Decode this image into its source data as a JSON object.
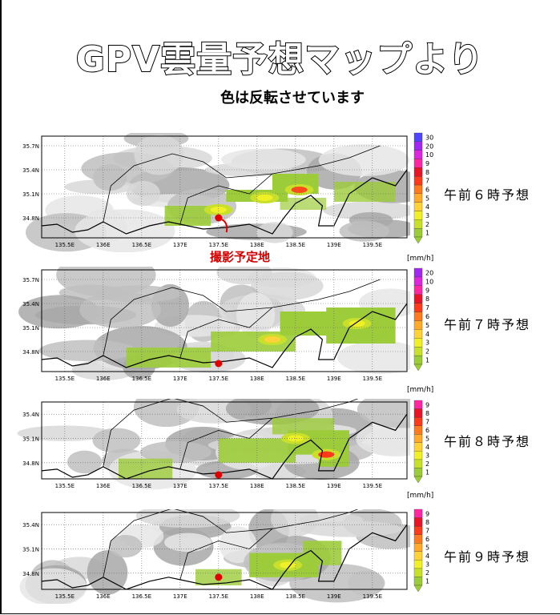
{
  "title": "GPV雲量予想マップより",
  "subtitle": "色は反転させています",
  "location_label": "撮影予定地",
  "unit": "[mm/h]",
  "colors": {
    "accent_red": "#e00000",
    "legend": [
      "#9ccc3a",
      "#c8e02c",
      "#f0f028",
      "#ffd23a",
      "#ffaa2a",
      "#ff7a20",
      "#ff3a1a",
      "#e81428",
      "#ff28a0",
      "#dc28dc",
      "#a028f0",
      "#5046ff",
      "#2828ff"
    ]
  },
  "chart_data": [
    {
      "type": "heatmap",
      "forecast": "午前６時予想",
      "x_ticks": [
        "135.5E",
        "136E",
        "136.5E",
        "137E",
        "137.5E",
        "138E",
        "138.5E",
        "139E",
        "139.5E"
      ],
      "y_ticks": [
        "35.7N",
        "35.4N",
        "35.1N",
        "34.8N"
      ],
      "legend_levels": [
        "1",
        "2",
        "3",
        "4",
        "5",
        "6",
        "7",
        "8",
        "9",
        "10",
        "20",
        "30"
      ],
      "marker": {
        "lon": 137.5,
        "lat": 34.8
      },
      "rain_max_mm_h": 7
    },
    {
      "type": "heatmap",
      "forecast": "午前７時予想",
      "x_ticks": [
        "135.5E",
        "136E",
        "136.5E",
        "137E",
        "137.5E",
        "138E",
        "138.5E",
        "139E",
        "139.5E"
      ],
      "y_ticks": [
        "35.7N",
        "35.4N",
        "35.1N",
        "34.8N"
      ],
      "legend_levels": [
        "1",
        "2",
        "3",
        "4",
        "5",
        "6",
        "7",
        "8",
        "9",
        "10",
        "20"
      ],
      "marker": {
        "lon": 137.5,
        "lat": 34.65
      },
      "rain_max_mm_h": 4
    },
    {
      "type": "heatmap",
      "forecast": "午前８時予想",
      "x_ticks": [
        "135.5E",
        "136E",
        "136.5E",
        "137E",
        "137.5E",
        "138E",
        "138.5E",
        "139E",
        "139.5E"
      ],
      "y_ticks": [
        "35.4N",
        "35.1N",
        "34.8N"
      ],
      "legend_levels": [
        "1",
        "2",
        "3",
        "4",
        "5",
        "6",
        "7",
        "8",
        "9"
      ],
      "marker": {
        "lon": 137.5,
        "lat": 34.65
      },
      "rain_max_mm_h": 6
    },
    {
      "type": "heatmap",
      "forecast": "午前９時予想",
      "x_ticks": [
        "135.5E",
        "136E",
        "136.5E",
        "137E",
        "137.5E",
        "138E",
        "138.5E",
        "139E",
        "139.5E"
      ],
      "y_ticks": [
        "35.4N",
        "35.1N",
        "34.8N"
      ],
      "legend_levels": [
        "1",
        "2",
        "3",
        "4",
        "5",
        "6",
        "7",
        "8",
        "9"
      ],
      "marker": {
        "lon": 137.5,
        "lat": 34.75
      },
      "rain_max_mm_h": 3
    }
  ]
}
